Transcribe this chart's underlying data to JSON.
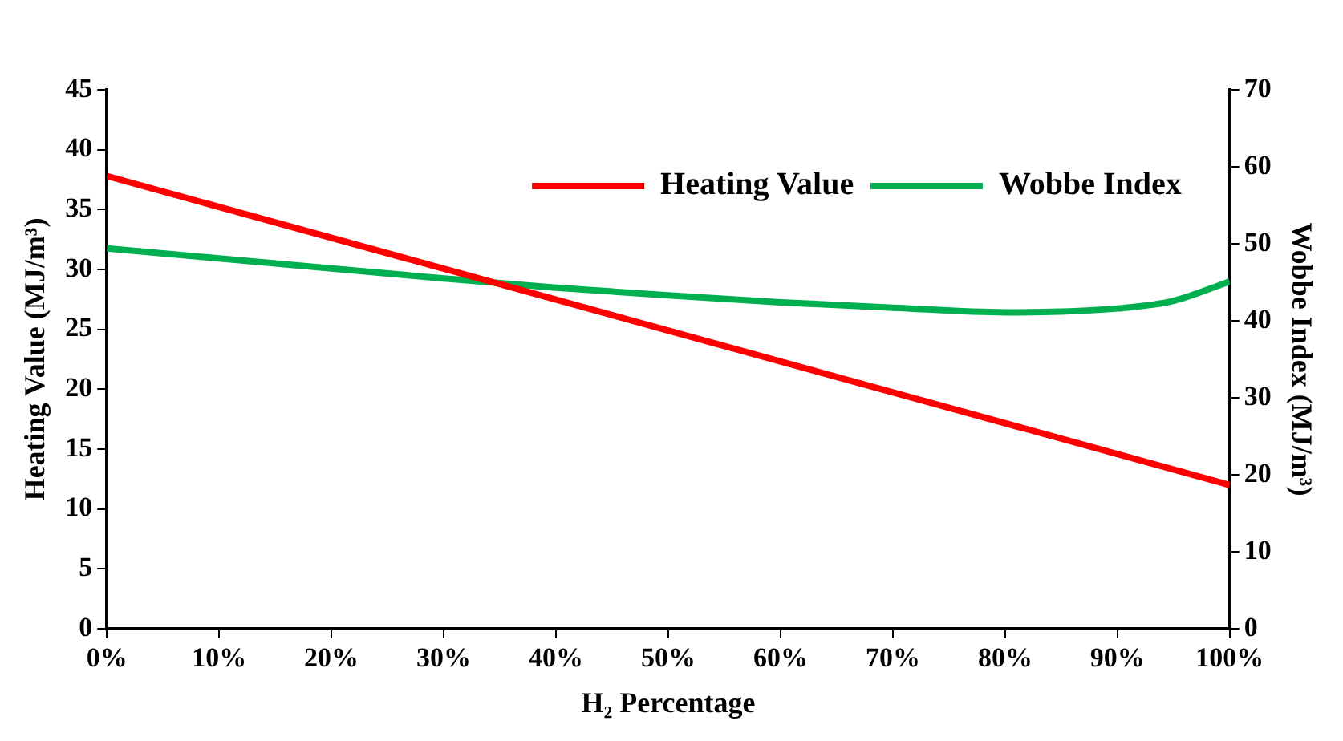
{
  "chart_data": {
    "type": "line",
    "xlabel": "H₂ Percentage",
    "ylabel": "Heating Value (MJ/m³)",
    "y2label": "Wobbe Index (MJ/m³)",
    "x": [
      0,
      10,
      20,
      30,
      40,
      50,
      60,
      70,
      80,
      85,
      90,
      95,
      100
    ],
    "series": [
      {
        "name": "Heating Value",
        "color": "#ff0000",
        "x": [
          0,
          100
        ],
        "values": [
          37.8,
          12
        ]
      },
      {
        "name": "Wobbe Index",
        "color": "#00b050",
        "axis": "y2",
        "values": [
          49.4,
          48.1,
          46.8,
          45.5,
          44.3,
          43.3,
          42.4,
          41.7,
          41.1,
          41.2,
          41.6,
          42.6,
          45.1
        ]
      }
    ],
    "xlim": [
      0,
      100
    ],
    "xticks": [
      {
        "value": 0,
        "label": "0%"
      },
      {
        "value": 10,
        "label": "10%"
      },
      {
        "value": 20,
        "label": "20%"
      },
      {
        "value": 30,
        "label": "30%"
      },
      {
        "value": 40,
        "label": "40%"
      },
      {
        "value": 50,
        "label": "50%"
      },
      {
        "value": 60,
        "label": "60%"
      },
      {
        "value": 70,
        "label": "70%"
      },
      {
        "value": 80,
        "label": "80%"
      },
      {
        "value": 90,
        "label": "90%"
      },
      {
        "value": 100,
        "label": "100%"
      }
    ],
    "ylim": [
      0,
      45
    ],
    "yticks": [
      0,
      5,
      10,
      15,
      20,
      25,
      30,
      35,
      40,
      45
    ],
    "y2lim": [
      0,
      70
    ],
    "y2ticks": [
      0,
      10,
      20,
      30,
      40,
      50,
      60,
      70
    ],
    "grid": false,
    "legend": "top right",
    "marker": "none",
    "line_style": "solid"
  }
}
